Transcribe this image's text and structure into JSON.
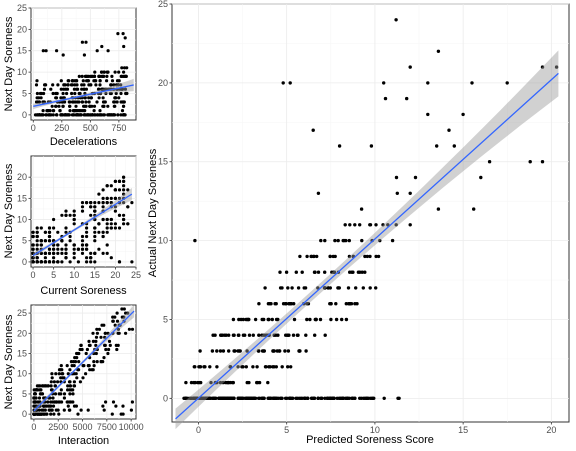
{
  "chart_data": [
    {
      "id": "decel",
      "type": "scatter",
      "xlabel": "Decelerations",
      "ylabel": "Next Day Soreness",
      "xlim": [
        -20,
        900
      ],
      "ylim": [
        -1.2,
        25
      ],
      "xticks": [
        0,
        250,
        500,
        750
      ],
      "yticks": [
        0,
        5,
        10,
        15,
        20,
        25
      ],
      "grid": true,
      "trend": {
        "x": [
          0,
          880
        ],
        "y": [
          2.0,
          7.0
        ],
        "color": "#3366ff"
      },
      "points_from": "generated",
      "seed": 11,
      "n": 380
    },
    {
      "id": "curr",
      "type": "scatter",
      "xlabel": "Current Soreness",
      "ylabel": "Next Day Soreness",
      "xlim": [
        -0.5,
        25
      ],
      "ylim": [
        -1.2,
        25
      ],
      "xticks": [
        0,
        5,
        10,
        15,
        20,
        25
      ],
      "yticks": [
        0,
        5,
        10,
        15,
        20
      ],
      "grid": true,
      "trend": {
        "x": [
          0,
          24
        ],
        "y": [
          1.5,
          16.0
        ],
        "color": "#3366ff"
      },
      "seed": 23,
      "n": 320
    },
    {
      "id": "inter",
      "type": "scatter",
      "xlabel": "Interaction",
      "ylabel": "Next Day Soreness",
      "xlim": [
        -300,
        10500
      ],
      "ylim": [
        -1.2,
        27
      ],
      "xticks": [
        0,
        2500,
        5000,
        7500,
        10000
      ],
      "yticks": [
        0,
        5,
        10,
        15,
        20,
        25
      ],
      "grid": true,
      "trend": {
        "x": [
          0,
          10300
        ],
        "y": [
          0.8,
          25.5
        ],
        "color": "#3366ff"
      },
      "seed": 37,
      "n": 340
    },
    {
      "id": "main",
      "type": "scatter",
      "xlabel": "Predicted Soreness Score",
      "ylabel": "Actual Next Day Soreness",
      "xlim": [
        -1.5,
        21
      ],
      "ylim": [
        -1.5,
        25
      ],
      "xticks": [
        0,
        5,
        10,
        15,
        20
      ],
      "yticks": [
        0,
        5,
        10,
        15,
        20,
        25
      ],
      "grid": true,
      "trend": {
        "x": [
          -1.3,
          20.4
        ],
        "y": [
          -1.3,
          20.6
        ],
        "color": "#3366ff"
      },
      "points": [
        [
          11.2,
          24
        ],
        [
          13.6,
          22
        ],
        [
          12.0,
          21
        ],
        [
          19.5,
          21
        ],
        [
          20.3,
          21
        ],
        [
          4.8,
          20
        ],
        [
          5.2,
          20
        ],
        [
          10.5,
          20
        ],
        [
          13.0,
          20
        ],
        [
          15.5,
          20
        ],
        [
          17.5,
          20
        ],
        [
          10.6,
          19
        ],
        [
          11.8,
          19
        ],
        [
          13.0,
          18
        ],
        [
          15.0,
          18
        ],
        [
          6.5,
          17
        ],
        [
          14.2,
          17
        ],
        [
          8.0,
          16
        ],
        [
          9.8,
          16
        ],
        [
          13.5,
          16
        ],
        [
          14.5,
          16
        ],
        [
          16.5,
          15
        ],
        [
          18.8,
          15
        ],
        [
          19.5,
          15
        ],
        [
          12.3,
          14
        ],
        [
          16.0,
          14
        ],
        [
          6.8,
          13
        ],
        [
          12.0,
          13
        ],
        [
          13.6,
          12
        ],
        [
          15.6,
          12
        ],
        [
          -0.2,
          10
        ],
        [
          12.0,
          11
        ],
        [
          11.0,
          10
        ]
      ],
      "seed": 53,
      "n": 520
    }
  ]
}
